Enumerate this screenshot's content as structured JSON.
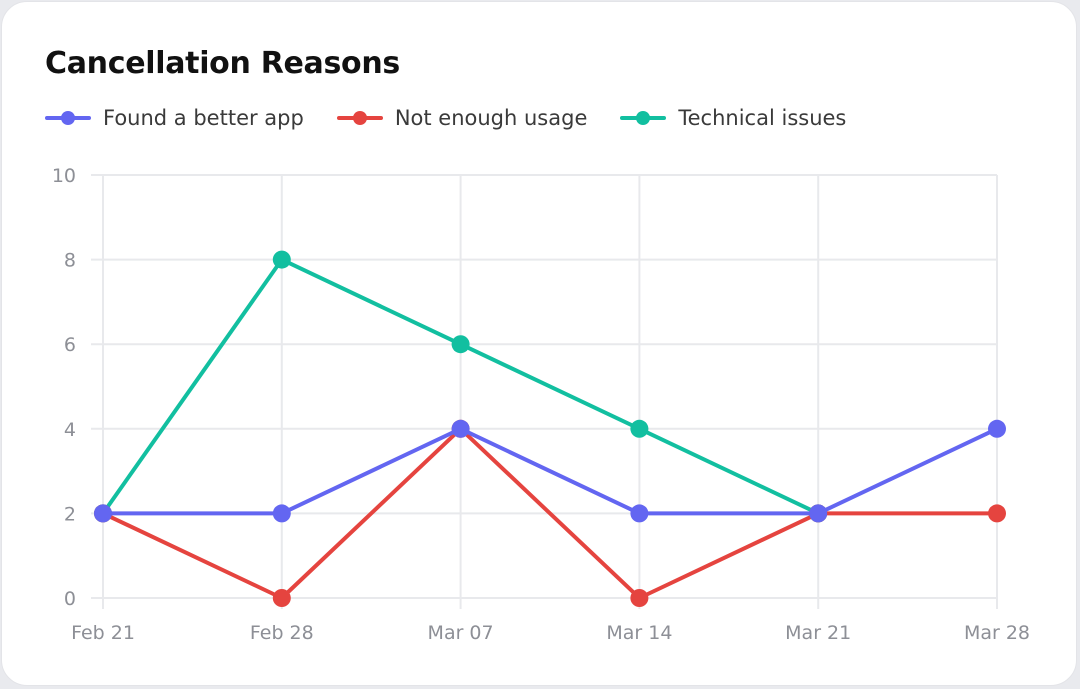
{
  "chart_data": {
    "type": "line",
    "title": "Cancellation Reasons",
    "xlabel": "",
    "ylabel": "",
    "categories": [
      "Feb 21",
      "Feb 28",
      "Mar 07",
      "Mar 14",
      "Mar 21",
      "Mar 28"
    ],
    "yticks": [
      0,
      2,
      4,
      6,
      8,
      10
    ],
    "ylim": [
      0,
      10
    ],
    "grid": true,
    "legend_position": "top-left",
    "series": [
      {
        "name": "Technical issues",
        "color": "#12bfa0",
        "values": [
          2,
          8,
          6,
          4,
          2,
          null
        ]
      },
      {
        "name": "Not enough usage",
        "color": "#e5443f",
        "values": [
          2,
          0,
          4,
          0,
          2,
          2
        ]
      },
      {
        "name": "Found a better app",
        "color": "#6366f1",
        "values": [
          2,
          2,
          4,
          2,
          2,
          4
        ]
      }
    ],
    "legend_order": [
      "Found a better app",
      "Not enough usage",
      "Technical issues"
    ]
  }
}
